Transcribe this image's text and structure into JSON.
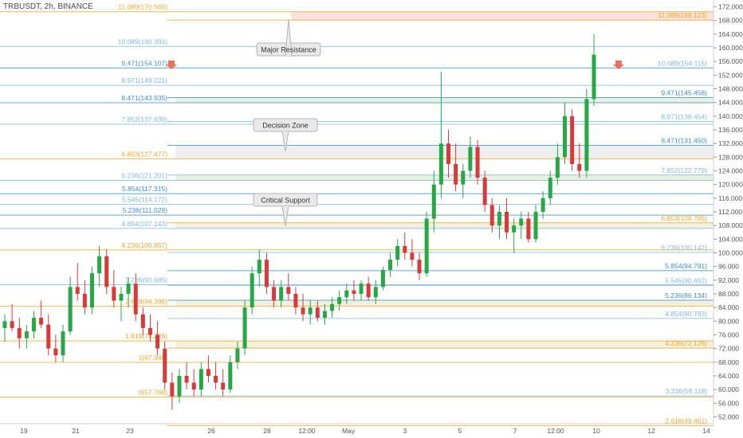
{
  "symbol_title": "TRBUSDT, 2h, BINANCE",
  "annotations": {
    "major_resistance": "Major Resistance",
    "decision_zone": "Decision Zone",
    "critical_support": "Critical Support"
  },
  "colors": {
    "orange": "#f5a623",
    "blue": "#3d8ed6",
    "light_blue": "#7fb6e6",
    "red": "#e04b3c",
    "up": "#27a844",
    "down": "#d83a3a",
    "arrow": "#e8735a"
  },
  "chart_data": {
    "type": "candlestick",
    "ylim": [
      50,
      174
    ],
    "y_ticks": [
      52,
      56,
      60,
      64,
      68,
      72,
      76,
      80,
      84,
      88,
      92,
      96,
      100,
      104,
      108,
      112,
      116,
      120,
      124,
      128,
      132,
      136,
      140,
      144,
      148,
      152,
      156,
      160,
      164,
      168,
      172
    ],
    "y_tick_labels": [
      "52.000",
      "56.000",
      "60.000",
      "64.000",
      "68.000",
      "72.000",
      "76.000",
      "80.000",
      "84.000",
      "88.000",
      "92.000",
      "96.000",
      "100.000",
      "104.000",
      "108.000",
      "112.000",
      "116.000",
      "120.000",
      "124.000",
      "128.000",
      "132.000",
      "136.000",
      "140.000",
      "144.000",
      "148.000",
      "152.000",
      "156.000",
      "160.000",
      "164.000",
      "168.000",
      "172.000"
    ],
    "x_ticks": [
      "19",
      "21",
      "23",
      "26",
      "28",
      "12:00",
      "May",
      "3",
      "5",
      "7",
      "12:00",
      "10",
      "12",
      "14"
    ],
    "fib_left": [
      {
        "label": "11.089(170.565)",
        "value": 170.565,
        "color": "orange"
      },
      {
        "label": "10.089(160.393)",
        "value": 160.393,
        "color": "light_blue"
      },
      {
        "label": "9.471(154.107)",
        "value": 154.107,
        "color": "blue"
      },
      {
        "label": "8.971(149.021)",
        "value": 149.021,
        "color": "light_blue"
      },
      {
        "label": "8.471(143.935)",
        "value": 143.935,
        "color": "blue"
      },
      {
        "label": "7.852(137.639)",
        "value": 137.639,
        "color": "light_blue"
      },
      {
        "label": "6.853(127.477)",
        "value": 127.477,
        "color": "orange"
      },
      {
        "label": "6.236(121.201)",
        "value": 121.201,
        "color": "light_blue"
      },
      {
        "label": "5.854(117.315)",
        "value": 117.315,
        "color": "blue"
      },
      {
        "label": "5.545(114.172)",
        "value": 114.172,
        "color": "light_blue"
      },
      {
        "label": "5.236(111.029)",
        "value": 111.029,
        "color": "blue"
      },
      {
        "label": "4.854(107.143)",
        "value": 107.143,
        "color": "light_blue"
      },
      {
        "label": "4.236(100.857)",
        "value": 100.857,
        "color": "orange"
      },
      {
        "label": "3.236(90.685)",
        "value": 90.685,
        "color": "light_blue"
      },
      {
        "label": "2.618(84.398)",
        "value": 84.398,
        "color": "orange"
      },
      {
        "label": "1.618(74.226)",
        "value": 74.226,
        "color": "orange"
      },
      {
        "label": "1(67.940)",
        "value": 67.94,
        "color": "orange"
      },
      {
        "label": "0(57.768)",
        "value": 57.768,
        "color": "orange"
      }
    ],
    "fib_right": [
      {
        "label": "11.089(168.123)",
        "value": 168.123,
        "color": "orange"
      },
      {
        "label": "10.089(154.115)",
        "value": 154.115,
        "color": "light_blue"
      },
      {
        "label": "9.471(145.458)",
        "value": 145.458,
        "color": "blue"
      },
      {
        "label": "8.971(138.454)",
        "value": 138.454,
        "color": "light_blue"
      },
      {
        "label": "8.471(131.450)",
        "value": 131.45,
        "color": "blue"
      },
      {
        "label": "7.852(122.779)",
        "value": 122.779,
        "color": "light_blue"
      },
      {
        "label": "6.853(108.785)",
        "value": 108.785,
        "color": "orange"
      },
      {
        "label": "6.236(100.142)",
        "value": 100.142,
        "color": "light_blue"
      },
      {
        "label": "5.854(94.791)",
        "value": 94.791,
        "color": "blue"
      },
      {
        "label": "5.545(90.462)",
        "value": 90.462,
        "color": "light_blue"
      },
      {
        "label": "5.236(86.134)",
        "value": 86.134,
        "color": "blue"
      },
      {
        "label": "4.854(80.783)",
        "value": 80.783,
        "color": "light_blue"
      },
      {
        "label": "4.236(72.126)",
        "value": 72.126,
        "color": "orange"
      },
      {
        "label": "3.236(58.118)",
        "value": 58.118,
        "color": "light_blue"
      },
      {
        "label": "2.618(49.461)",
        "value": 49.461,
        "color": "orange"
      }
    ],
    "zones": [
      {
        "name": "resistance-zone",
        "from": 168.123,
        "to": 170.565,
        "color": "red"
      },
      {
        "name": "decision-zone",
        "from": 127.477,
        "to": 131.45,
        "color": "grey"
      },
      {
        "name": "support-zone-1",
        "from": 143.935,
        "to": 145.458,
        "color": "green"
      },
      {
        "name": "critical-support-zone",
        "from": 107.143,
        "to": 108.785,
        "color": "yellow"
      },
      {
        "name": "support-zone-2",
        "from": 121.201,
        "to": 122.779,
        "color": "green"
      },
      {
        "name": "support-zone-3",
        "from": 84.398,
        "to": 86.134,
        "color": "yellow"
      },
      {
        "name": "support-zone-4",
        "from": 72.126,
        "to": 74.226,
        "color": "yellow"
      }
    ],
    "series": [
      {
        "x": 0,
        "open": 78,
        "high": 82,
        "low": 74,
        "close": 80
      },
      {
        "x": 1,
        "open": 80,
        "high": 85,
        "low": 77,
        "close": 78
      },
      {
        "x": 2,
        "open": 78,
        "high": 81,
        "low": 72,
        "close": 75
      },
      {
        "x": 3,
        "open": 75,
        "high": 79,
        "low": 72,
        "close": 77
      },
      {
        "x": 4,
        "open": 77,
        "high": 83,
        "low": 75,
        "close": 81
      },
      {
        "x": 5,
        "open": 81,
        "high": 86,
        "low": 78,
        "close": 79
      },
      {
        "x": 6,
        "open": 79,
        "high": 82,
        "low": 70,
        "close": 72
      },
      {
        "x": 7,
        "open": 72,
        "high": 76,
        "low": 68,
        "close": 70
      },
      {
        "x": 8,
        "open": 70,
        "high": 79,
        "low": 68,
        "close": 77
      },
      {
        "x": 9,
        "open": 77,
        "high": 93,
        "low": 76,
        "close": 90
      },
      {
        "x": 10,
        "open": 90,
        "high": 97,
        "low": 86,
        "close": 88
      },
      {
        "x": 11,
        "open": 88,
        "high": 92,
        "low": 82,
        "close": 84
      },
      {
        "x": 12,
        "open": 84,
        "high": 96,
        "low": 82,
        "close": 94
      },
      {
        "x": 13,
        "open": 94,
        "high": 102,
        "low": 90,
        "close": 99
      },
      {
        "x": 14,
        "open": 99,
        "high": 101,
        "low": 88,
        "close": 90
      },
      {
        "x": 15,
        "open": 90,
        "high": 95,
        "low": 84,
        "close": 86
      },
      {
        "x": 16,
        "open": 86,
        "high": 90,
        "low": 80,
        "close": 88
      },
      {
        "x": 17,
        "open": 88,
        "high": 93,
        "low": 84,
        "close": 91
      },
      {
        "x": 18,
        "open": 91,
        "high": 94,
        "low": 80,
        "close": 82
      },
      {
        "x": 19,
        "open": 82,
        "high": 84,
        "low": 76,
        "close": 78
      },
      {
        "x": 20,
        "open": 78,
        "high": 82,
        "low": 74,
        "close": 76
      },
      {
        "x": 21,
        "open": 76,
        "high": 80,
        "low": 70,
        "close": 72
      },
      {
        "x": 22,
        "open": 72,
        "high": 74,
        "low": 60,
        "close": 62
      },
      {
        "x": 23,
        "open": 62,
        "high": 65,
        "low": 54,
        "close": 58
      },
      {
        "x": 24,
        "open": 58,
        "high": 66,
        "low": 56,
        "close": 64
      },
      {
        "x": 25,
        "open": 64,
        "high": 68,
        "low": 60,
        "close": 62
      },
      {
        "x": 26,
        "open": 62,
        "high": 66,
        "low": 58,
        "close": 60
      },
      {
        "x": 27,
        "open": 60,
        "high": 68,
        "low": 58,
        "close": 66
      },
      {
        "x": 28,
        "open": 66,
        "high": 70,
        "low": 62,
        "close": 64
      },
      {
        "x": 29,
        "open": 64,
        "high": 68,
        "low": 60,
        "close": 62
      },
      {
        "x": 30,
        "open": 62,
        "high": 66,
        "low": 58,
        "close": 60
      },
      {
        "x": 31,
        "open": 60,
        "high": 70,
        "low": 59,
        "close": 68
      },
      {
        "x": 32,
        "open": 68,
        "high": 74,
        "low": 66,
        "close": 72
      },
      {
        "x": 33,
        "open": 72,
        "high": 86,
        "low": 70,
        "close": 84
      },
      {
        "x": 34,
        "open": 84,
        "high": 96,
        "low": 82,
        "close": 94
      },
      {
        "x": 35,
        "open": 94,
        "high": 101,
        "low": 90,
        "close": 98
      },
      {
        "x": 36,
        "open": 98,
        "high": 100,
        "low": 88,
        "close": 90
      },
      {
        "x": 37,
        "open": 90,
        "high": 92,
        "low": 84,
        "close": 86
      },
      {
        "x": 38,
        "open": 86,
        "high": 92,
        "low": 84,
        "close": 90
      },
      {
        "x": 39,
        "open": 90,
        "high": 94,
        "low": 86,
        "close": 88
      },
      {
        "x": 40,
        "open": 88,
        "high": 90,
        "low": 82,
        "close": 84
      },
      {
        "x": 41,
        "open": 84,
        "high": 88,
        "low": 80,
        "close": 82
      },
      {
        "x": 42,
        "open": 82,
        "high": 86,
        "low": 79,
        "close": 84
      },
      {
        "x": 43,
        "open": 84,
        "high": 86,
        "low": 80,
        "close": 81
      },
      {
        "x": 44,
        "open": 81,
        "high": 85,
        "low": 79,
        "close": 83
      },
      {
        "x": 45,
        "open": 83,
        "high": 87,
        "low": 81,
        "close": 85
      },
      {
        "x": 46,
        "open": 85,
        "high": 89,
        "low": 83,
        "close": 87
      },
      {
        "x": 47,
        "open": 87,
        "high": 91,
        "low": 85,
        "close": 89
      },
      {
        "x": 48,
        "open": 89,
        "high": 92,
        "low": 86,
        "close": 88
      },
      {
        "x": 49,
        "open": 88,
        "high": 92,
        "low": 86,
        "close": 91
      },
      {
        "x": 50,
        "open": 91,
        "high": 93,
        "low": 86,
        "close": 87
      },
      {
        "x": 51,
        "open": 87,
        "high": 92,
        "low": 85,
        "close": 90
      },
      {
        "x": 52,
        "open": 90,
        "high": 96,
        "low": 89,
        "close": 95
      },
      {
        "x": 53,
        "open": 95,
        "high": 100,
        "low": 93,
        "close": 98
      },
      {
        "x": 54,
        "open": 98,
        "high": 104,
        "low": 96,
        "close": 102
      },
      {
        "x": 55,
        "open": 102,
        "high": 106,
        "low": 98,
        "close": 100
      },
      {
        "x": 56,
        "open": 100,
        "high": 104,
        "low": 96,
        "close": 98
      },
      {
        "x": 57,
        "open": 98,
        "high": 100,
        "low": 92,
        "close": 94
      },
      {
        "x": 58,
        "open": 94,
        "high": 112,
        "low": 93,
        "close": 110
      },
      {
        "x": 59,
        "open": 110,
        "high": 124,
        "low": 106,
        "close": 120
      },
      {
        "x": 60,
        "open": 120,
        "high": 153,
        "low": 116,
        "close": 132
      },
      {
        "x": 61,
        "open": 132,
        "high": 136,
        "low": 122,
        "close": 126
      },
      {
        "x": 62,
        "open": 126,
        "high": 132,
        "low": 118,
        "close": 120
      },
      {
        "x": 63,
        "open": 120,
        "high": 126,
        "low": 116,
        "close": 124
      },
      {
        "x": 64,
        "open": 124,
        "high": 134,
        "low": 122,
        "close": 131
      },
      {
        "x": 65,
        "open": 131,
        "high": 133,
        "low": 120,
        "close": 122
      },
      {
        "x": 66,
        "open": 122,
        "high": 124,
        "low": 112,
        "close": 114
      },
      {
        "x": 67,
        "open": 114,
        "high": 116,
        "low": 106,
        "close": 108
      },
      {
        "x": 68,
        "open": 108,
        "high": 114,
        "low": 104,
        "close": 112
      },
      {
        "x": 69,
        "open": 112,
        "high": 116,
        "low": 104,
        "close": 106
      },
      {
        "x": 70,
        "open": 106,
        "high": 110,
        "low": 100,
        "close": 108
      },
      {
        "x": 71,
        "open": 108,
        "high": 112,
        "low": 104,
        "close": 110
      },
      {
        "x": 72,
        "open": 110,
        "high": 112,
        "low": 103,
        "close": 104
      },
      {
        "x": 73,
        "open": 104,
        "high": 114,
        "low": 103,
        "close": 112
      },
      {
        "x": 74,
        "open": 112,
        "high": 118,
        "low": 110,
        "close": 116
      },
      {
        "x": 75,
        "open": 116,
        "high": 124,
        "low": 114,
        "close": 122
      },
      {
        "x": 76,
        "open": 122,
        "high": 132,
        "low": 120,
        "close": 128
      },
      {
        "x": 77,
        "open": 128,
        "high": 144,
        "low": 126,
        "close": 140
      },
      {
        "x": 78,
        "open": 140,
        "high": 142,
        "low": 124,
        "close": 126
      },
      {
        "x": 79,
        "open": 126,
        "high": 132,
        "low": 122,
        "close": 124
      },
      {
        "x": 80,
        "open": 124,
        "high": 148,
        "low": 122,
        "close": 145
      },
      {
        "x": 81,
        "open": 145,
        "high": 164,
        "low": 143,
        "close": 158
      }
    ]
  }
}
